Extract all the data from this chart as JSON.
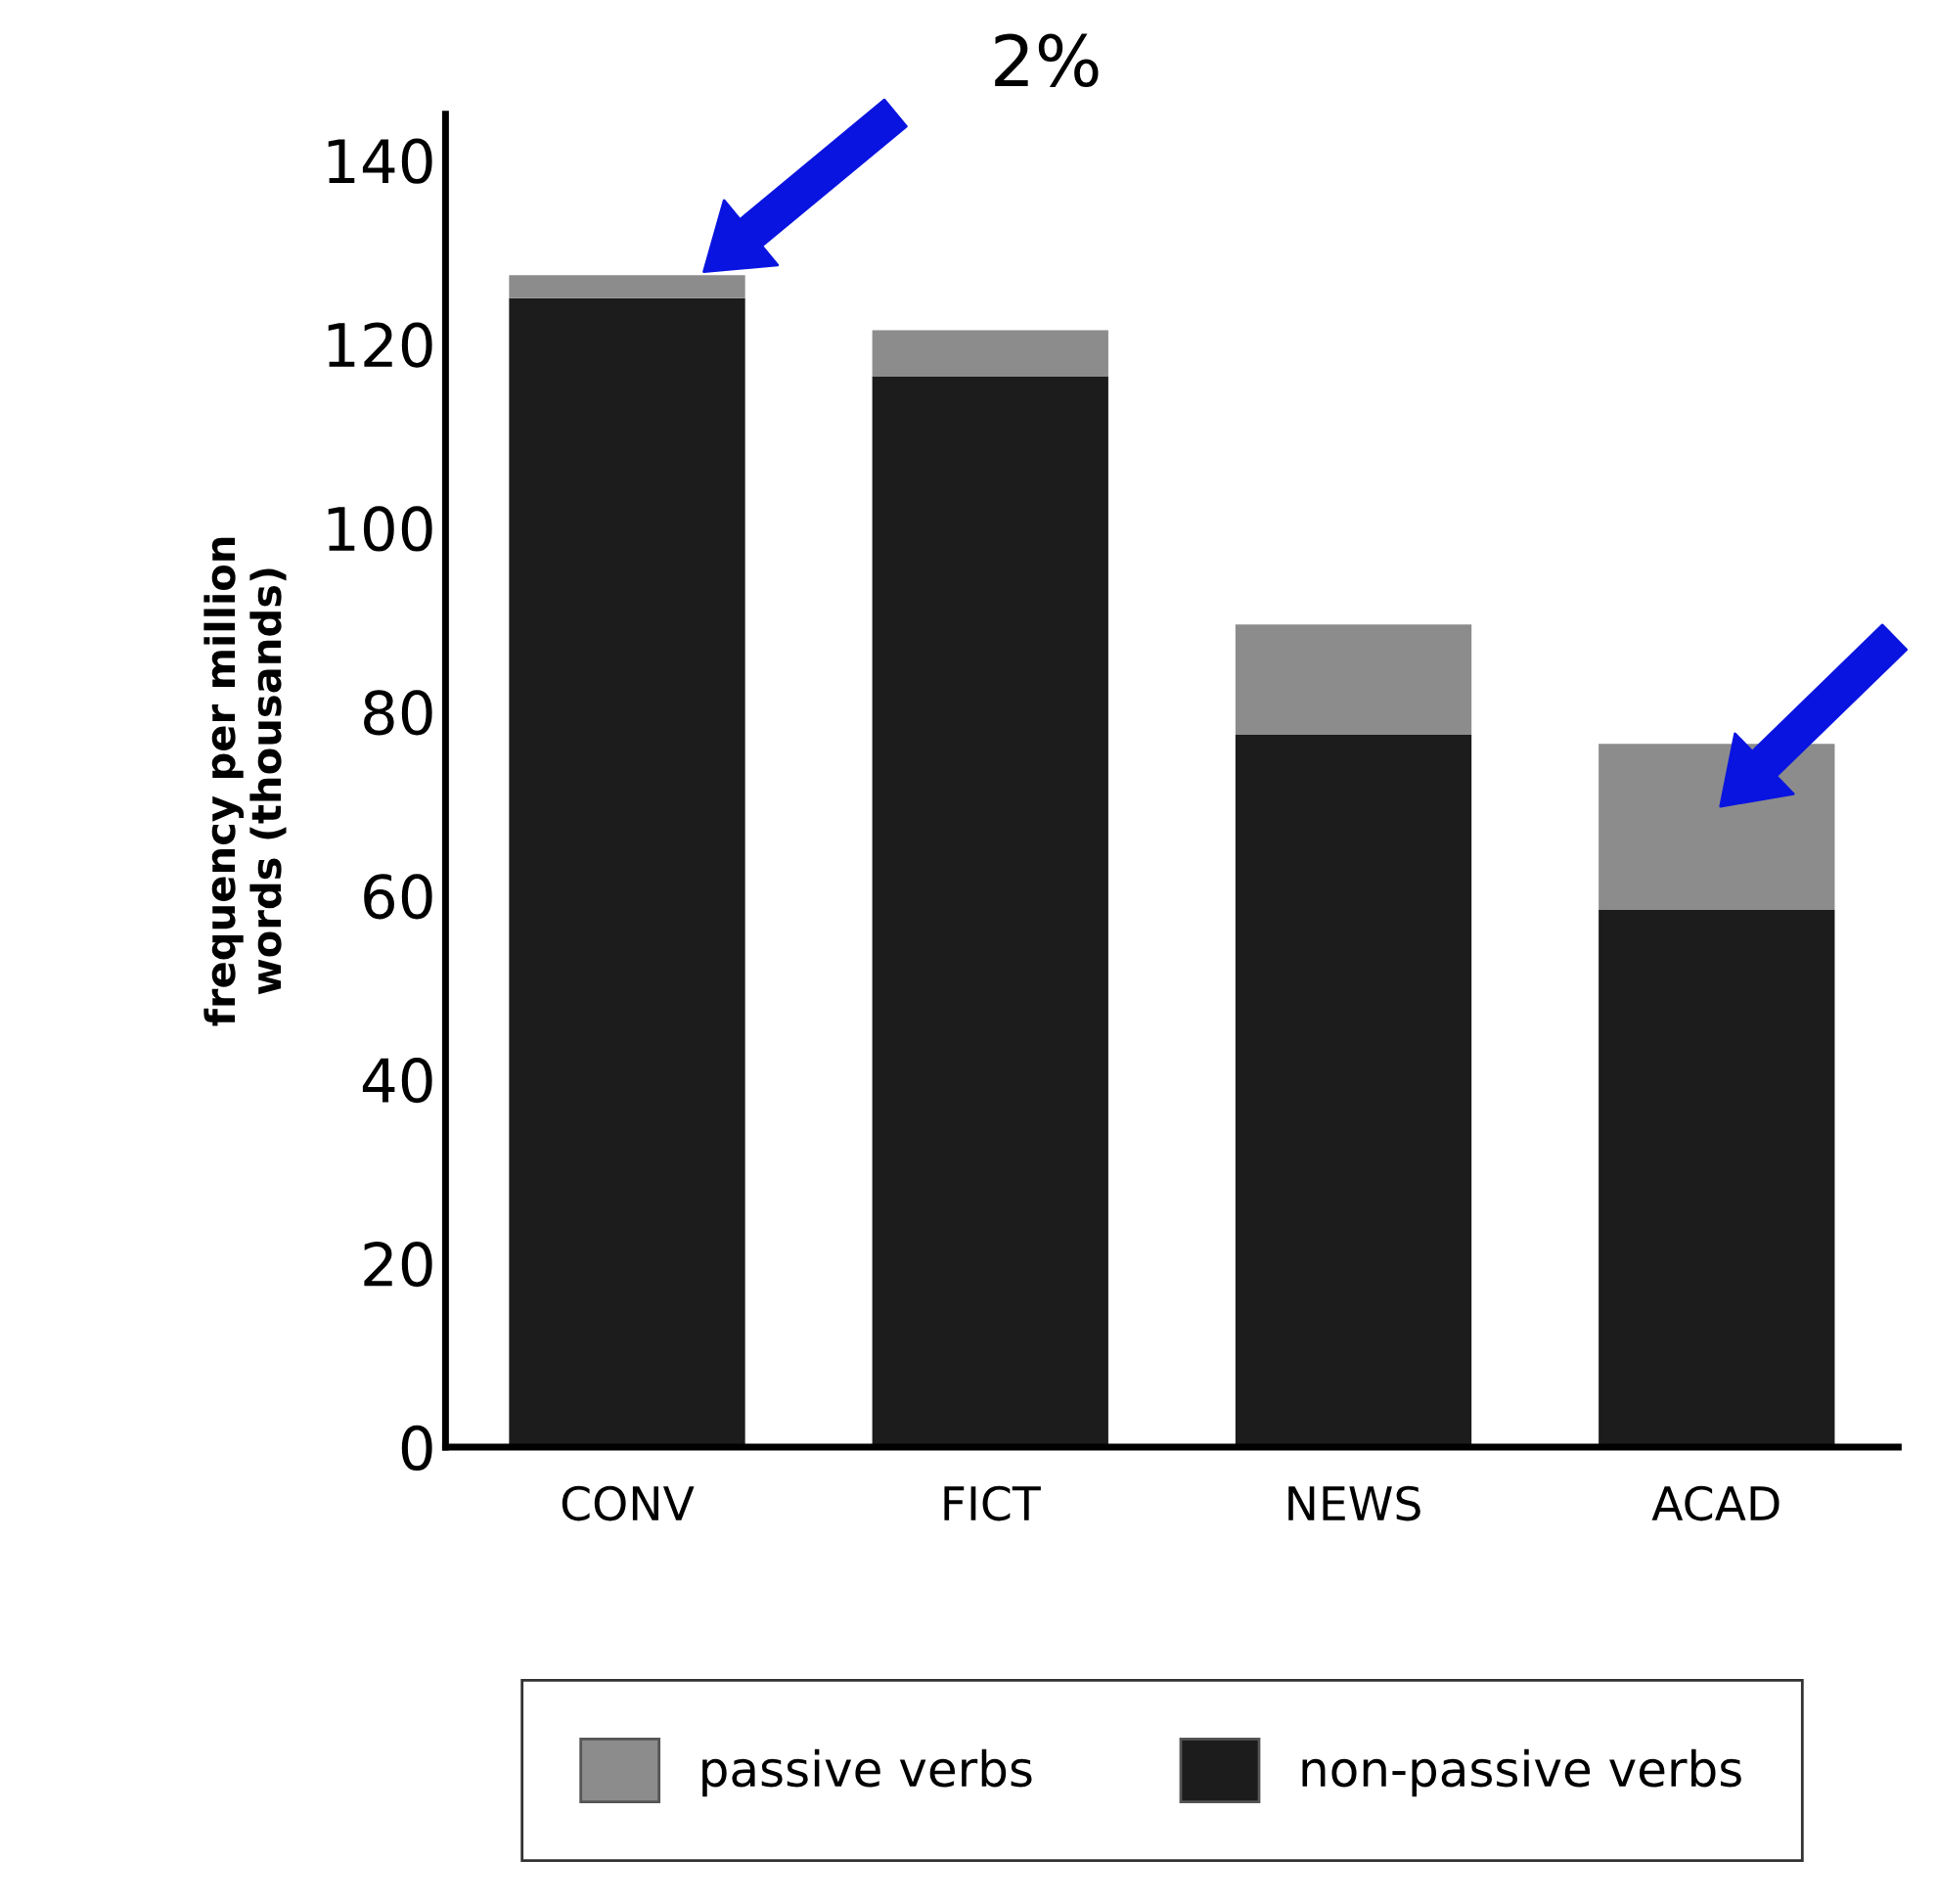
{
  "chart_data": {
    "type": "bar",
    "stacked": true,
    "ylabel": "frequency per million\nwords (thousands)",
    "categories": [
      "CONV",
      "FICT",
      "NEWS",
      "ACAD"
    ],
    "series": [
      {
        "name": "non-passive verbs",
        "color": "#1c1c1c",
        "values": [
          125,
          116.5,
          77.5,
          58.5
        ]
      },
      {
        "name": "passive verbs",
        "color": "#8c8c8c",
        "values": [
          2.5,
          5,
          12,
          18
        ]
      }
    ],
    "ylim": [
      0,
      145
    ],
    "yticks": [
      0,
      20,
      40,
      60,
      80,
      100,
      120,
      140
    ],
    "legend": "bottom",
    "grid": false,
    "annotations": [
      "2%"
    ]
  }
}
